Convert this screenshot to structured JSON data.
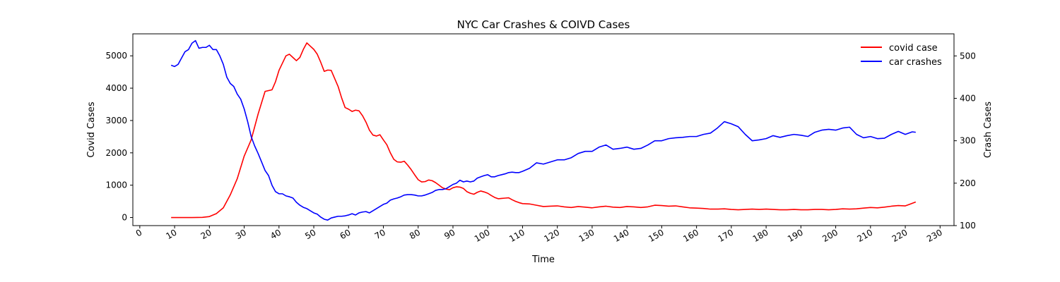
{
  "chart_data": {
    "type": "line",
    "title": "NYC Car Crashes & COIVD Cases",
    "xlabel": "Time",
    "ylabel_left": "Covid Cases",
    "ylabel_right": "Crash Cases",
    "xlim": [
      -2,
      234
    ],
    "ylim_left": [
      -250,
      5680
    ],
    "ylim_right": [
      100,
      552
    ],
    "xticks": [
      0,
      10,
      20,
      30,
      40,
      50,
      60,
      70,
      80,
      90,
      100,
      110,
      120,
      130,
      140,
      150,
      160,
      170,
      180,
      190,
      200,
      210,
      220,
      230
    ],
    "yticks_left": [
      0,
      1000,
      2000,
      3000,
      4000,
      5000
    ],
    "yticks_right": [
      100,
      200,
      300,
      400,
      500
    ],
    "grid": false,
    "legend_position": "top-right",
    "colors": {
      "covid": "#ff0000",
      "crashes": "#0000ff"
    },
    "series": [
      {
        "name": "covid case",
        "axis": "left",
        "color": "#ff0000",
        "x": [
          9,
          12,
          15,
          18,
          20,
          22,
          24,
          26,
          28,
          30,
          32,
          34,
          36,
          38,
          39,
          40,
          42,
          43,
          44,
          45,
          46,
          47,
          48,
          49,
          50,
          51,
          52,
          53,
          54,
          55,
          56,
          57,
          58,
          59,
          60,
          61,
          62,
          63,
          64,
          65,
          66,
          67,
          68,
          69,
          70,
          71,
          72,
          73,
          74,
          75,
          76,
          77,
          78,
          79,
          80,
          81,
          82,
          83,
          84,
          85,
          86,
          87,
          88,
          89,
          90,
          91,
          92,
          93,
          94,
          95,
          96,
          97,
          98,
          99,
          100,
          101,
          102,
          103,
          104,
          105,
          106,
          107,
          108,
          109,
          110,
          112,
          114,
          116,
          118,
          120,
          122,
          124,
          126,
          128,
          130,
          132,
          134,
          136,
          138,
          140,
          142,
          144,
          146,
          148,
          150,
          152,
          154,
          156,
          158,
          160,
          162,
          164,
          166,
          168,
          170,
          172,
          174,
          176,
          178,
          180,
          182,
          184,
          186,
          188,
          190,
          192,
          194,
          196,
          198,
          200,
          202,
          204,
          206,
          208,
          210,
          212,
          214,
          216,
          218,
          220,
          221,
          222,
          223
        ],
        "values": [
          0,
          0,
          0,
          5,
          30,
          120,
          300,
          700,
          1200,
          1900,
          2400,
          3200,
          3900,
          3950,
          4200,
          4550,
          5000,
          5050,
          4950,
          4850,
          4950,
          5200,
          5400,
          5300,
          5200,
          5050,
          4800,
          4520,
          4560,
          4550,
          4300,
          4050,
          3700,
          3400,
          3350,
          3280,
          3320,
          3300,
          3150,
          2950,
          2700,
          2550,
          2520,
          2560,
          2400,
          2250,
          2000,
          1800,
          1720,
          1710,
          1740,
          1620,
          1480,
          1320,
          1170,
          1100,
          1110,
          1160,
          1140,
          1080,
          1000,
          920,
          880,
          860,
          920,
          950,
          940,
          900,
          800,
          750,
          720,
          780,
          820,
          790,
          750,
          680,
          620,
          580,
          590,
          600,
          610,
          550,
          500,
          460,
          430,
          420,
          380,
          340,
          350,
          360,
          330,
          310,
          340,
          320,
          300,
          330,
          350,
          320,
          310,
          340,
          330,
          310,
          330,
          380,
          370,
          350,
          360,
          330,
          300,
          290,
          280,
          260,
          260,
          270,
          250,
          240,
          250,
          260,
          250,
          260,
          250,
          240,
          240,
          250,
          240,
          240,
          250,
          250,
          240,
          250,
          270,
          260,
          270,
          290,
          310,
          300,
          320,
          350,
          370,
          360,
          400,
          440,
          480
        ]
      },
      {
        "name": "car crashes",
        "axis": "right",
        "color": "#0000ff",
        "x": [
          9,
          10,
          11,
          12,
          13,
          14,
          15,
          16,
          17,
          18,
          19,
          20,
          21,
          22,
          23,
          24,
          25,
          26,
          27,
          28,
          29,
          30,
          31,
          32,
          33,
          34,
          35,
          36,
          37,
          38,
          39,
          40,
          41,
          42,
          43,
          44,
          45,
          46,
          47,
          48,
          49,
          50,
          51,
          52,
          53,
          54,
          55,
          56,
          57,
          58,
          59,
          60,
          61,
          62,
          63,
          64,
          65,
          66,
          67,
          68,
          69,
          70,
          71,
          72,
          73,
          74,
          75,
          76,
          77,
          78,
          79,
          80,
          81,
          82,
          83,
          84,
          85,
          86,
          87,
          88,
          89,
          90,
          91,
          92,
          93,
          94,
          95,
          96,
          97,
          98,
          99,
          100,
          101,
          102,
          103,
          104,
          105,
          106,
          107,
          108,
          109,
          110,
          112,
          114,
          116,
          118,
          120,
          122,
          124,
          126,
          128,
          130,
          132,
          134,
          136,
          138,
          140,
          142,
          144,
          146,
          148,
          150,
          152,
          154,
          156,
          158,
          160,
          162,
          164,
          166,
          168,
          170,
          172,
          174,
          176,
          178,
          180,
          182,
          184,
          186,
          188,
          190,
          192,
          194,
          196,
          198,
          200,
          202,
          204,
          206,
          208,
          210,
          212,
          214,
          216,
          218,
          220,
          222,
          223
        ],
        "values": [
          478,
          475,
          480,
          495,
          510,
          515,
          530,
          536,
          518,
          520,
          520,
          525,
          515,
          515,
          500,
          480,
          450,
          435,
          428,
          410,
          398,
          375,
          345,
          310,
          288,
          270,
          250,
          230,
          218,
          195,
          180,
          175,
          175,
          170,
          168,
          165,
          155,
          148,
          143,
          140,
          135,
          130,
          127,
          120,
          115,
          113,
          118,
          120,
          122,
          122,
          123,
          125,
          128,
          125,
          130,
          132,
          133,
          130,
          135,
          140,
          145,
          150,
          153,
          160,
          163,
          165,
          168,
          172,
          173,
          173,
          172,
          170,
          170,
          172,
          175,
          178,
          183,
          185,
          185,
          187,
          192,
          197,
          200,
          207,
          203,
          205,
          203,
          205,
          212,
          215,
          218,
          220,
          215,
          215,
          218,
          220,
          222,
          225,
          226,
          225,
          225,
          228,
          235,
          248,
          245,
          250,
          255,
          255,
          260,
          270,
          275,
          275,
          285,
          290,
          280,
          282,
          285,
          280,
          282,
          290,
          300,
          300,
          305,
          307,
          308,
          310,
          310,
          315,
          318,
          330,
          345,
          340,
          333,
          315,
          300,
          302,
          305,
          312,
          308,
          312,
          315,
          313,
          310,
          320,
          325,
          327,
          325,
          330,
          332,
          315,
          307,
          310,
          305,
          306,
          315,
          322,
          315,
          321,
          320
        ]
      }
    ]
  }
}
